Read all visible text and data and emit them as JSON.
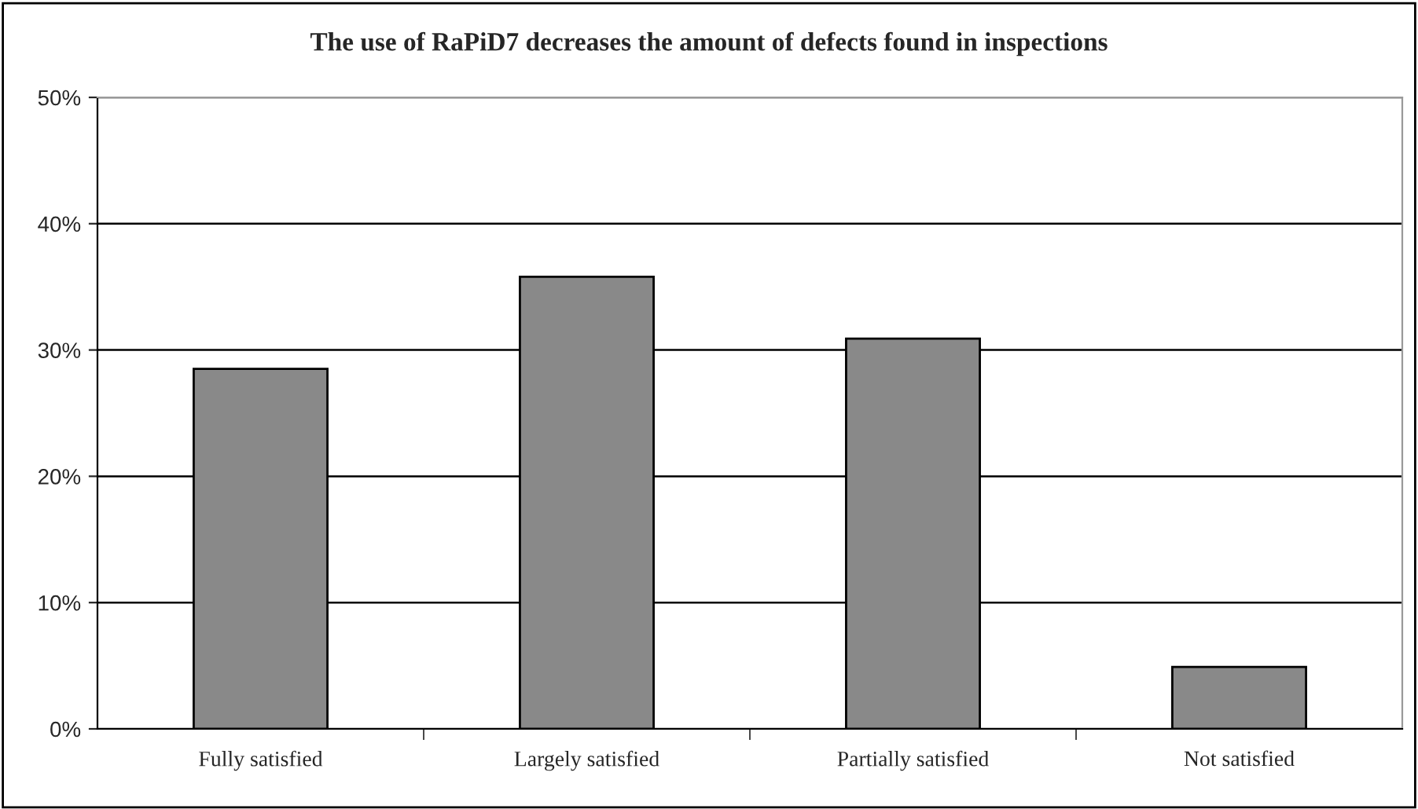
{
  "chart_data": {
    "type": "bar",
    "title": "The use of RaPiD7 decreases the amount of defects found in inspections",
    "categories": [
      "Fully satisfied",
      "Largely satisfied",
      "Partially satisfied",
      "Not satisfied"
    ],
    "values": [
      28.5,
      35.8,
      30.9,
      4.9
    ],
    "color": "#898989",
    "ylim": [
      0,
      50
    ],
    "yticks": [
      {
        "value": 0,
        "label": "0%"
      },
      {
        "value": 10,
        "label": "10%"
      },
      {
        "value": 20,
        "label": "20%"
      },
      {
        "value": 30,
        "label": "30%"
      },
      {
        "value": 40,
        "label": "40%"
      },
      {
        "value": 50,
        "label": "50%"
      }
    ],
    "grid": "y",
    "legend": false
  }
}
